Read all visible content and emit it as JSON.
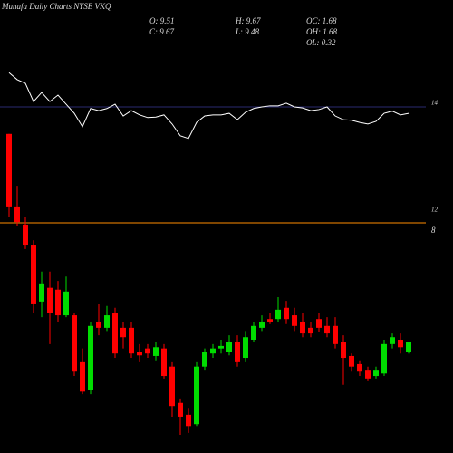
{
  "chart_data": {
    "type": "candlestick",
    "title": "Munafa Daily Charts NYSE VKQ",
    "stats": [
      "O: 9.51",
      "H: 9.67",
      "OC: 1.68",
      "C: 9.67",
      "L: 9.48",
      "OH: 1.68",
      "OL: 0.32"
    ],
    "ylim": [
      7.89,
      15.13
    ],
    "up_color": "#00dd00",
    "down_color": "#ff0000",
    "open": [
      12.99,
      11.83,
      11.54,
      11.22,
      10.31,
      10.53,
      10.5,
      10.09,
      10.09,
      9.34,
      8.9,
      9.99,
      9.89,
      10.13,
      9.89,
      9.89,
      9.51,
      9.56,
      9.44,
      9.56,
      9.27,
      8.69,
      8.5,
      8.35,
      9.27,
      9.48,
      9.56,
      9.51,
      9.66,
      9.41,
      9.7,
      9.89,
      10.03,
      10.03,
      10.21,
      10.09,
      9.99,
      9.89,
      10.03,
      9.92,
      9.92,
      9.66,
      9.44,
      9.31,
      9.22,
      9.12,
      9.16,
      9.63,
      9.7,
      9.51
    ],
    "high": [
      12.99,
      12.16,
      11.66,
      11.29,
      10.79,
      10.79,
      10.64,
      10.71,
      10.13,
      9.56,
      9.99,
      10.28,
      10.24,
      10.21,
      9.99,
      9.99,
      9.63,
      9.63,
      9.66,
      9.63,
      9.34,
      8.76,
      8.61,
      9.34,
      9.56,
      9.63,
      9.7,
      9.77,
      9.77,
      9.84,
      9.99,
      10.09,
      10.13,
      10.38,
      10.32,
      10.21,
      10.13,
      9.99,
      10.13,
      10.06,
      10.06,
      9.77,
      9.48,
      9.37,
      9.27,
      9.27,
      9.7,
      9.8,
      9.8,
      9.67
    ],
    "low": [
      11.66,
      11.51,
      11.15,
      10.13,
      10.06,
      9.63,
      9.99,
      10.06,
      9.12,
      8.83,
      8.83,
      9.77,
      9.84,
      9.41,
      9.56,
      9.41,
      9.34,
      9.41,
      9.37,
      9.08,
      8.47,
      8.18,
      8.21,
      8.32,
      9.22,
      9.41,
      9.48,
      9.45,
      9.27,
      9.34,
      9.66,
      9.84,
      9.95,
      9.99,
      9.95,
      9.84,
      9.74,
      9.74,
      9.83,
      9.74,
      9.56,
      8.98,
      9.19,
      9.12,
      9.05,
      9.08,
      9.12,
      9.56,
      9.48,
      9.48
    ],
    "close": [
      11.83,
      11.58,
      11.22,
      10.28,
      10.6,
      10.13,
      10.09,
      10.47,
      9.19,
      8.87,
      9.92,
      9.89,
      10.09,
      9.48,
      9.74,
      9.48,
      9.45,
      9.48,
      9.58,
      9.12,
      8.64,
      8.47,
      8.32,
      9.27,
      9.51,
      9.56,
      9.6,
      9.67,
      9.34,
      9.74,
      9.92,
      9.99,
      9.99,
      10.18,
      10.03,
      9.92,
      9.8,
      9.8,
      9.89,
      9.8,
      9.63,
      9.41,
      9.27,
      9.19,
      9.08,
      9.22,
      9.63,
      9.74,
      9.58,
      9.67
    ],
    "y2lim": [
      7.525,
      16
    ],
    "y2ticks": [
      14,
      12
    ],
    "line": {
      "color": "#ffffff",
      "axis": "y2",
      "values": [
        14.64,
        14.51,
        14.44,
        14.1,
        14.27,
        14.1,
        14.22,
        14.05,
        13.88,
        13.63,
        13.97,
        13.93,
        13.97,
        14.05,
        13.83,
        13.93,
        13.85,
        13.8,
        13.81,
        13.85,
        13.68,
        13.46,
        13.41,
        13.71,
        13.83,
        13.85,
        13.85,
        13.88,
        13.76,
        13.9,
        13.97,
        14.0,
        14.02,
        14.02,
        14.07,
        14.0,
        13.98,
        13.93,
        13.95,
        14.0,
        13.83,
        13.76,
        13.75,
        13.71,
        13.68,
        13.73,
        13.88,
        13.92,
        13.85,
        13.88
      ]
    },
    "reference_lines": [
      {
        "value": 14,
        "color": "#2a2a70",
        "axis": "y2"
      },
      {
        "value": 11.83,
        "color": "#ff8c00",
        "axis": "y2"
      }
    ],
    "annotations": [
      "8"
    ]
  }
}
